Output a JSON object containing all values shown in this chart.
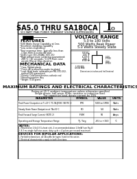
{
  "title_main": "SA5.0",
  "title_thru": " THRU ",
  "title_end": "SA180CA",
  "subtitle": "500 WATT PEAK POWER TRANSIENT VOLTAGE SUPPRESSORS",
  "io_label": "I",
  "io_sub": "o",
  "voltage_range_title": "VOLTAGE RANGE",
  "voltage_range_line1": "5.0 to 180 Volts",
  "voltage_range_line2": "500 Watts Peak Power",
  "voltage_range_line3": "5.0 Watts Steady State",
  "features_title": "FEATURES",
  "features": [
    "*500 Watts Surge Capability at 1ms",
    "*Excellent clamping capability",
    "*Low series impedance",
    "*Fast response time: Typically less than",
    "  1.0ps from 0 to min BV min",
    "*Jedec type DO-204AC (DO-15)",
    "*High temperature soldering guaranteed:",
    "  260°C / 10 seconds / 0.375 from case",
    "  weight 85g at 10gs duration"
  ],
  "mech_title": "MECHANICAL DATA",
  "mech": [
    "* Case: Molded plastic",
    "* Finish: All terminal fins matte tin plated",
    "* Lead: Axial leads, solderable per MIL-STD-202,",
    "  method 208 guaranteed",
    "* Polarity: Color band denotes cathode end",
    "* Mounting position: Any",
    "* Weight: 0.40 grams"
  ],
  "max_ratings_title": "MAXIMUM RATINGS AND ELECTRICAL CHARACTERISTICS",
  "max_ratings_subtitle1": "Rating at 25°C ambient temperature unless otherwise specified",
  "max_ratings_subtitle2": "Single phase, half wave, 60Hz, resistive or inductive load.",
  "max_ratings_subtitle3": "For capacitive load, derate current by 20%",
  "table_headers": [
    "PARAMETER",
    "SYMBOL",
    "VALUE",
    "UNITS"
  ],
  "table_rows": [
    [
      "Peak Power Dissipation at T=25°C TC,TA,JEDEC (NOTE 1)",
      "PPK",
      "500(at 1MS)",
      "Watts"
    ],
    [
      "Steady State Power Dissipation at TA=50°C",
      "PD",
      "5.0",
      "Watts"
    ],
    [
      "Peak Forward Surge Current (NOTE 2)",
      "IFSM",
      "50",
      "Amps"
    ],
    [
      "Operating and Storage Temperature Range",
      "TJ, Tstg",
      "-65 to +150",
      "°C"
    ]
  ],
  "notes_title": "NOTES:",
  "notes": [
    "1. Mounted on 1.0x1.0 Cu heat sink, 2 recommended above 1.0mW (see Fig.4)",
    "2. 8.3 ms single half sine wave, duty cycle = 4 pulses per second maximum."
  ],
  "devices_title": "DEVICES FOR BIPOLAR APPLICATIONS:",
  "devices": [
    "1. For bidirectional use, all CA suffix for types listed in this series",
    "2. Electrical characteristics apply in both directions"
  ],
  "bg_color": "#ffffff",
  "border_color": "#222222",
  "header_bg": "#dddddd"
}
